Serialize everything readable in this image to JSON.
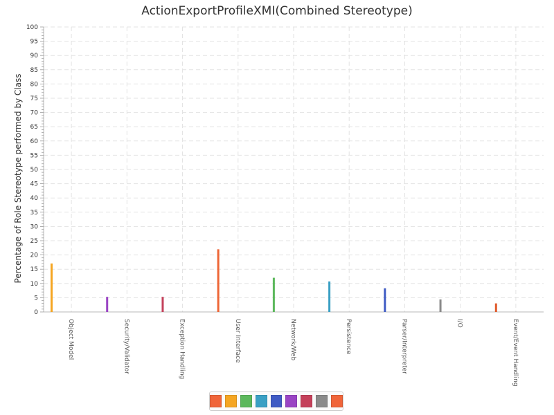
{
  "chart_data": {
    "type": "bar",
    "title": "ActionExportProfileXMI(Combined Stereotype)",
    "xlabel": "",
    "ylabel": "Percentage of Role Stereotype performed by Class",
    "ylim": [
      0,
      100
    ],
    "y_ticks": [
      0,
      5,
      10,
      15,
      20,
      25,
      30,
      35,
      40,
      45,
      50,
      55,
      60,
      65,
      70,
      75,
      80,
      85,
      90,
      95,
      100
    ],
    "grid": true,
    "legend_position": "bottom-center",
    "categories": [
      "Object Model",
      "Security/Validator",
      "Exception Handling",
      "User Interface",
      "Network/Web",
      "Persistence",
      "Parser/Interpreter",
      "I/O",
      "Event/Event Handling"
    ],
    "values": [
      17,
      5.3,
      5.3,
      22,
      12,
      10.7,
      8.3,
      4.4,
      3
    ],
    "bar_colors": [
      "#f5a623",
      "#9a44c4",
      "#c4405a",
      "#ee6535",
      "#5cb85c",
      "#3aa0c4",
      "#3f5bc4",
      "#8a8a8a",
      "#e0592b"
    ],
    "legend_colors": [
      "#f0653a",
      "#f5a623",
      "#5cb85c",
      "#3aa0c4",
      "#3f5bc4",
      "#9a44c4",
      "#c4405a",
      "#8a8a8a",
      "#f0653a"
    ]
  }
}
